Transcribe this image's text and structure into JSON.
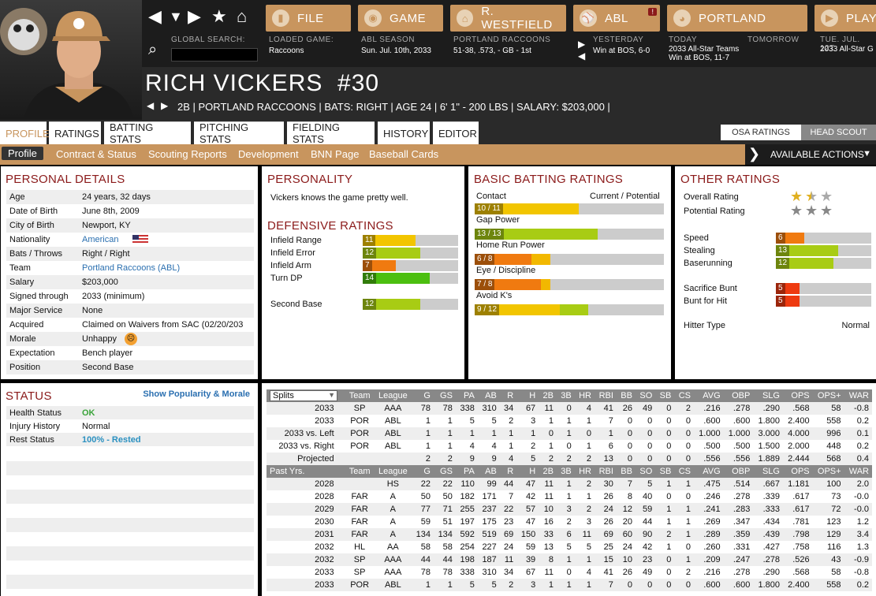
{
  "nav": {
    "menus": [
      {
        "label": "FILE",
        "icon": "file-icon"
      },
      {
        "label": "GAME",
        "icon": "globe-icon"
      },
      {
        "label": "R. WESTFIELD",
        "icon": "home-icon"
      },
      {
        "label": "ABL",
        "icon": "league-logo-icon",
        "badge": "!"
      },
      {
        "label": "PORTLAND",
        "icon": "team-logo-icon"
      },
      {
        "label": "PLAY",
        "icon": "play-icon"
      }
    ],
    "global_search_label": "GLOBAL SEARCH:",
    "loaded_game_label": "LOADED GAME:",
    "loaded_game_value": "Raccoons",
    "season_label": "ABL SEASON",
    "season_value": "Sun. Jul. 10th, 2033",
    "team_label": "PORTLAND RACCOONS",
    "team_value": "51-38, .573, - GB - 1st",
    "yesterday_label": "YESTERDAY",
    "yesterday_value": "Win at BOS, 6-0",
    "today_label": "TODAY",
    "today_value1": "2033 All-Star Teams",
    "today_value2": "Win at BOS, 11-7",
    "tomorrow_label": "TOMORROW",
    "next_label": "TUE. JUL. 12T",
    "next_value": "2033 All-Star G"
  },
  "player": {
    "name": "RICH VICKERS",
    "number": "#30",
    "info": "2B | PORTLAND RACCOONS  |  BATS: RIGHT  |  AGE 24  |  6' 1\" - 200 LBS  |  SALARY: $203,000  |"
  },
  "tabs": [
    "PROFILE",
    "RATINGS",
    "BATTING STATS",
    "PITCHING STATS",
    "FIELDING STATS",
    "HISTORY",
    "EDITOR"
  ],
  "toggles": [
    "OSA RATINGS",
    "HEAD SCOUT"
  ],
  "subtabs": [
    "Profile",
    "Contract & Status",
    "Scouting Reports",
    "Development",
    "BNN Page",
    "Baseball Cards"
  ],
  "actions_label": "AVAILABLE ACTIONS",
  "personal": {
    "title": "PERSONAL DETAILS",
    "rows": [
      {
        "k": "Age",
        "v": "24 years, 32 days"
      },
      {
        "k": "Date of Birth",
        "v": "June 8th, 2009"
      },
      {
        "k": "City of Birth",
        "v": "Newport, KY"
      },
      {
        "k": "Nationality",
        "v": "American",
        "link": true
      },
      {
        "k": "Bats / Throws",
        "v": "Right / Right"
      },
      {
        "k": "Team",
        "v": "Portland Raccoons (ABL)",
        "link": true
      },
      {
        "k": "Salary",
        "v": "$203,000"
      },
      {
        "k": "Signed through",
        "v": "2033 (minimum)"
      },
      {
        "k": "Major Service",
        "v": "None"
      },
      {
        "k": "Acquired",
        "v": "Claimed on Waivers from SAC (02/20/203"
      },
      {
        "k": "Morale",
        "v": "Unhappy"
      },
      {
        "k": "Expectation",
        "v": "Bench player"
      },
      {
        "k": "Position",
        "v": "Second Base"
      }
    ]
  },
  "personality": {
    "title": "PERSONALITY",
    "text": "Vickers knows the game pretty well."
  },
  "defensive": {
    "title": "DEFENSIVE RATINGS",
    "items": [
      {
        "label": "Infield Range",
        "value": 11,
        "color": "#f2c500"
      },
      {
        "label": "Infield Error",
        "value": 12,
        "color": "#a8cc14"
      },
      {
        "label": "Infield Arm",
        "value": 7,
        "color": "#f07a10"
      },
      {
        "label": "Turn DP",
        "value": 14,
        "color": "#4cbf10"
      }
    ],
    "position": {
      "label": "Second Base",
      "value": 12,
      "color": "#a8cc14"
    }
  },
  "batting": {
    "title": "BASIC BATTING RATINGS",
    "header_left": "Contact",
    "header_right": "Current / Potential",
    "items": [
      {
        "label": "Contact",
        "text": "10 / 11",
        "cur": 10,
        "pot": 11,
        "ccol": "#f2c500",
        "pcol": "#f2c500"
      },
      {
        "label": "Gap Power",
        "text": "13 / 13",
        "cur": 13,
        "pot": 13,
        "ccol": "#a8cc14",
        "pcol": "#a8cc14"
      },
      {
        "label": "Home Run Power",
        "text": "6 / 8",
        "cur": 6,
        "pot": 8,
        "ccol": "#f07a10",
        "pcol": "#f2b800"
      },
      {
        "label": "Eye / Discipline",
        "text": "7 / 8",
        "cur": 7,
        "pot": 8,
        "ccol": "#f07a10",
        "pcol": "#f2b800"
      },
      {
        "label": "Avoid K's",
        "text": "9 / 12",
        "cur": 9,
        "pot": 12,
        "ccol": "#f2c500",
        "pcol": "#a8cc14"
      }
    ]
  },
  "other": {
    "title": "OTHER RATINGS",
    "overall_label": "Overall Rating",
    "overall_stars": 1.5,
    "potential_label": "Potential Rating",
    "potential_stars": 3,
    "items": [
      {
        "label": "Speed",
        "value": 6,
        "color": "#f07a10"
      },
      {
        "label": "Stealing",
        "value": 13,
        "color": "#a8cc14"
      },
      {
        "label": "Baserunning",
        "value": 12,
        "color": "#a8cc14"
      }
    ],
    "items2": [
      {
        "label": "Sacrifice Bunt",
        "value": 5,
        "color": "#ee3a10"
      },
      {
        "label": "Bunt for Hit",
        "value": 5,
        "color": "#ee3a10"
      }
    ],
    "hitter_label": "Hitter Type",
    "hitter_value": "Normal"
  },
  "status": {
    "title": "STATUS",
    "link": "Show Popularity & Morale",
    "rows": [
      {
        "k": "Health Status",
        "v": "OK",
        "color": "#3aa43a"
      },
      {
        "k": "Injury History",
        "v": "Normal",
        "color": "#111"
      },
      {
        "k": "Rest Status",
        "v": "100% - Rested",
        "color": "#2a90c0"
      }
    ]
  },
  "stats": {
    "splits_select": "Splits",
    "header1": [
      "Team",
      "League",
      "G",
      "GS",
      "PA",
      "AB",
      "R",
      "H",
      "2B",
      "3B",
      "HR",
      "RBI",
      "BB",
      "SO",
      "SB",
      "CS",
      "AVG",
      "OBP",
      "SLG",
      "OPS",
      "OPS+",
      "WAR"
    ],
    "rows1": [
      [
        "2033",
        "SP",
        "AAA",
        "78",
        "78",
        "338",
        "310",
        "34",
        "67",
        "11",
        "0",
        "4",
        "41",
        "26",
        "49",
        "0",
        "2",
        ".216",
        ".278",
        ".290",
        ".568",
        "58",
        "-0.8"
      ],
      [
        "2033",
        "POR",
        "ABL",
        "1",
        "1",
        "5",
        "5",
        "2",
        "3",
        "1",
        "1",
        "1",
        "7",
        "0",
        "0",
        "0",
        "0",
        ".600",
        ".600",
        "1.800",
        "2.400",
        "558",
        "0.2"
      ],
      [
        "2033 vs. Left",
        "POR",
        "ABL",
        "1",
        "1",
        "1",
        "1",
        "1",
        "1",
        "0",
        "1",
        "0",
        "1",
        "0",
        "0",
        "0",
        "0",
        "1.000",
        "1.000",
        "3.000",
        "4.000",
        "996",
        "0.1"
      ],
      [
        "2033 vs. Right",
        "POR",
        "ABL",
        "1",
        "1",
        "4",
        "4",
        "1",
        "2",
        "1",
        "0",
        "1",
        "6",
        "0",
        "0",
        "0",
        "0",
        ".500",
        ".500",
        "1.500",
        "2.000",
        "448",
        "0.2"
      ],
      [
        "Projected",
        "",
        "",
        "2",
        "2",
        "9",
        "9",
        "4",
        "5",
        "2",
        "2",
        "2",
        "13",
        "0",
        "0",
        "0",
        "0",
        ".556",
        ".556",
        "1.889",
        "2.444",
        "568",
        "0.4"
      ]
    ],
    "header2_first": "Past Yrs.",
    "rows2": [
      [
        "2028",
        "",
        "HS",
        "22",
        "22",
        "110",
        "99",
        "44",
        "47",
        "11",
        "1",
        "2",
        "30",
        "7",
        "5",
        "1",
        "1",
        ".475",
        ".514",
        ".667",
        "1.181",
        "100",
        "2.0"
      ],
      [
        "2028",
        "FAR",
        "A",
        "50",
        "50",
        "182",
        "171",
        "7",
        "42",
        "11",
        "1",
        "1",
        "26",
        "8",
        "40",
        "0",
        "0",
        ".246",
        ".278",
        ".339",
        ".617",
        "73",
        "-0.0"
      ],
      [
        "2029",
        "FAR",
        "A",
        "77",
        "71",
        "255",
        "237",
        "22",
        "57",
        "10",
        "3",
        "2",
        "24",
        "12",
        "59",
        "1",
        "1",
        ".241",
        ".283",
        ".333",
        ".617",
        "72",
        "-0.0"
      ],
      [
        "2030",
        "FAR",
        "A",
        "59",
        "51",
        "197",
        "175",
        "23",
        "47",
        "16",
        "2",
        "3",
        "26",
        "20",
        "44",
        "1",
        "1",
        ".269",
        ".347",
        ".434",
        ".781",
        "123",
        "1.2"
      ],
      [
        "2031",
        "FAR",
        "A",
        "134",
        "134",
        "592",
        "519",
        "69",
        "150",
        "33",
        "6",
        "11",
        "69",
        "60",
        "90",
        "2",
        "1",
        ".289",
        ".359",
        ".439",
        ".798",
        "129",
        "3.4"
      ],
      [
        "2032",
        "HL",
        "AA",
        "58",
        "58",
        "254",
        "227",
        "24",
        "59",
        "13",
        "5",
        "5",
        "25",
        "24",
        "42",
        "1",
        "0",
        ".260",
        ".331",
        ".427",
        ".758",
        "116",
        "1.3"
      ],
      [
        "2032",
        "SP",
        "AAA",
        "44",
        "44",
        "198",
        "187",
        "11",
        "39",
        "8",
        "1",
        "1",
        "15",
        "10",
        "23",
        "0",
        "1",
        ".209",
        ".247",
        ".278",
        ".526",
        "43",
        "-0.9"
      ],
      [
        "2033",
        "SP",
        "AAA",
        "78",
        "78",
        "338",
        "310",
        "34",
        "67",
        "11",
        "0",
        "4",
        "41",
        "26",
        "49",
        "0",
        "2",
        ".216",
        ".278",
        ".290",
        ".568",
        "58",
        "-0.8"
      ],
      [
        "2033",
        "POR",
        "ABL",
        "1",
        "1",
        "5",
        "5",
        "2",
        "3",
        "1",
        "1",
        "1",
        "7",
        "0",
        "0",
        "0",
        "0",
        ".600",
        ".600",
        "1.800",
        "2.400",
        "558",
        "0.2"
      ]
    ]
  }
}
